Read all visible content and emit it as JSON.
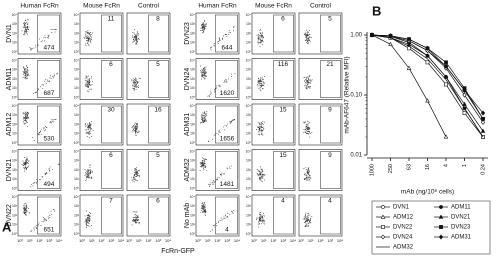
{
  "panel_a": {
    "label": "A",
    "columns": [
      "Human FcRn",
      "Mouse FcRn",
      "Control"
    ],
    "axis_ticks": [
      "10⁰",
      "10¹",
      "10²",
      "10³",
      "10⁴"
    ],
    "x_label": "FcRn-GFP",
    "blocks": [
      {
        "rows": [
          {
            "label": "DVN1",
            "values": [
              474,
              11,
              8
            ]
          },
          {
            "label": "ADM11",
            "values": [
              687,
              6,
              5
            ]
          },
          {
            "label": "ADM12",
            "values": [
              530,
              30,
              16
            ]
          },
          {
            "label": "DVN21",
            "values": [
              494,
              6,
              5
            ]
          },
          {
            "label": "DVN22",
            "values": [
              651,
              7,
              6
            ]
          }
        ]
      },
      {
        "rows": [
          {
            "label": "DVN23",
            "values": [
              644,
              6,
              5
            ]
          },
          {
            "label": "DVN24",
            "values": [
              1620,
              116,
              21
            ]
          },
          {
            "label": "ADM31",
            "values": [
              1656,
              15,
              9
            ]
          },
          {
            "label": "ADM32",
            "values": [
              1481,
              15,
              9
            ]
          },
          {
            "label": "No mAb",
            "values": [
              4,
              4,
              4
            ]
          }
        ]
      }
    ]
  },
  "chart_data": {
    "type": "line",
    "title": "B",
    "y_label": "mAb-AF647 (Relative MFI)",
    "x_label": "mAb (ng/10⁶ cells)",
    "categories": [
      "1000",
      "250",
      "63",
      "16",
      "4",
      "1",
      "0.24"
    ],
    "log_y": true,
    "ylim": [
      0.01,
      1
    ],
    "yticks": [
      0.01,
      {
        "value": 0.1,
        "label": "0.10"
      },
      {
        "value": 1,
        "label": "1.00"
      }
    ],
    "series": [
      {
        "name": "DVN1",
        "marker": "circle",
        "filled": false,
        "color": "#111",
        "values": [
          1,
          0.95,
          0.8,
          0.55,
          0.3,
          0.12,
          0.04
        ]
      },
      {
        "name": "ADM11",
        "marker": "circle",
        "filled": true,
        "color": "#111",
        "values": [
          1,
          0.95,
          0.75,
          0.45,
          0.2,
          0.06,
          0.02
        ]
      },
      {
        "name": "ADM12",
        "marker": "triangle",
        "filled": false,
        "color": "#111",
        "values": [
          1,
          0.7,
          0.28,
          0.08,
          0.02,
          null,
          null
        ]
      },
      {
        "name": "DVN21",
        "marker": "triangle",
        "filled": true,
        "color": "#111",
        "values": [
          1,
          0.9,
          0.7,
          0.45,
          0.2,
          0.07,
          0.025
        ]
      },
      {
        "name": "DVN22",
        "marker": "square",
        "filled": false,
        "color": "#111",
        "values": [
          1,
          0.9,
          0.6,
          0.35,
          0.15,
          0.05,
          0.02
        ]
      },
      {
        "name": "DVN23",
        "marker": "square",
        "filled": true,
        "color": "#111",
        "values": [
          1,
          0.97,
          0.85,
          0.6,
          0.35,
          0.13,
          0.04
        ]
      },
      {
        "name": "DVN24",
        "marker": "diamond",
        "filled": false,
        "color": "#111",
        "values": [
          1,
          0.95,
          0.8,
          0.55,
          0.28,
          0.1,
          0.035
        ]
      },
      {
        "name": "ADM31",
        "marker": "diamond",
        "filled": true,
        "color": "#111",
        "values": [
          1,
          0.97,
          0.85,
          0.6,
          0.3,
          0.12,
          0.05
        ]
      },
      {
        "name": "ADM32",
        "marker": "none",
        "filled": false,
        "color": "#111",
        "values": [
          1,
          0.9,
          0.65,
          0.4,
          0.18,
          0.06,
          0.02
        ]
      }
    ]
  }
}
